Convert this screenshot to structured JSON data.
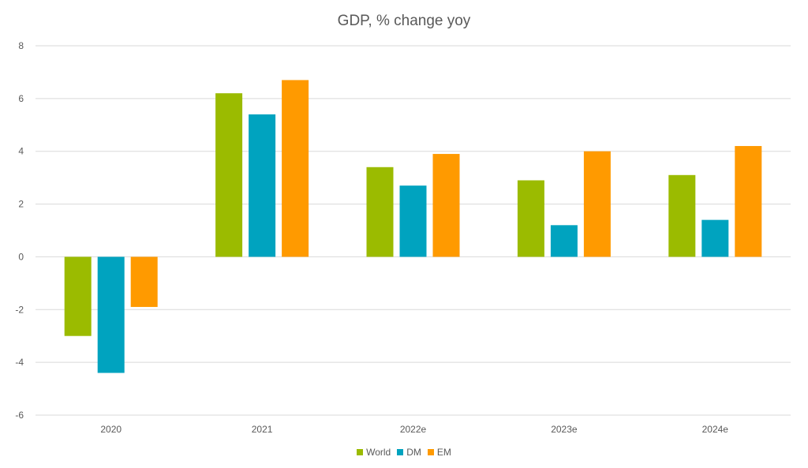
{
  "chart_data": {
    "type": "bar",
    "title": "GDP, % change yoy",
    "xlabel": "",
    "ylabel": "",
    "categories": [
      "2020",
      "2021",
      "2022e",
      "2023e",
      "2024e"
    ],
    "series": [
      {
        "name": "World",
        "color": "#9bbb00",
        "values": [
          -3.0,
          6.2,
          3.4,
          2.9,
          3.1
        ]
      },
      {
        "name": "DM",
        "color": "#00a3bf",
        "values": [
          -4.4,
          5.4,
          2.7,
          1.2,
          1.4
        ]
      },
      {
        "name": "EM",
        "color": "#ff9a00",
        "values": [
          -1.9,
          6.7,
          3.9,
          4.0,
          4.2
        ]
      }
    ],
    "ylim": [
      -6,
      8
    ],
    "yticks": [
      "8",
      "6",
      "4",
      "2",
      "0",
      "-2",
      "-4",
      "-6"
    ],
    "ytick_values": [
      8,
      6,
      4,
      2,
      0,
      -2,
      -4,
      -6
    ],
    "grid": true,
    "legend_position": "bottom"
  }
}
